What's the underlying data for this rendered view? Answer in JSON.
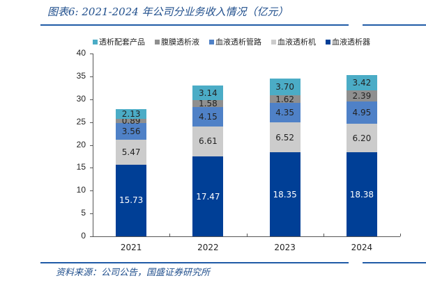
{
  "header": {
    "title": "图表6:  2021-2024 年公司分业务收入情况（亿元）"
  },
  "footer": {
    "source": "资料来源：公司公告，国盛证券研究所"
  },
  "colors": {
    "accent": "#1f5aa6",
    "透析配套产品": "#4bacc6",
    "腹膜透析液": "#8f8f8f",
    "血液透析管路": "#4f81c7",
    "血液透析机": "#cccccc",
    "血液透析器": "#003f96"
  },
  "legend": [
    {
      "label": "透析配套产品",
      "color": "#4bacc6"
    },
    {
      "label": "腹膜透析液",
      "color": "#8f8f8f"
    },
    {
      "label": "血液透析管路",
      "color": "#4f81c7"
    },
    {
      "label": "血液透析机",
      "color": "#cccccc"
    },
    {
      "label": "血液透析器",
      "color": "#003f96"
    }
  ],
  "yticks": [
    "0",
    "5",
    "10",
    "15",
    "20",
    "25",
    "30",
    "35",
    "40"
  ],
  "chart_data": {
    "type": "bar",
    "stacked": true,
    "title": "2021-2024 年公司分业务收入情况（亿元）",
    "xlabel": "",
    "ylabel": "",
    "ylim": [
      0,
      40
    ],
    "yticks": [
      0,
      5,
      10,
      15,
      20,
      25,
      30,
      35,
      40
    ],
    "grid": false,
    "legend_position": "top",
    "categories": [
      "2021",
      "2022",
      "2023",
      "2024"
    ],
    "series": [
      {
        "name": "血液透析器",
        "color": "#003f96",
        "values": [
          15.73,
          17.47,
          18.35,
          18.38
        ]
      },
      {
        "name": "血液透析机",
        "color": "#cccccc",
        "values": [
          5.47,
          6.61,
          6.52,
          6.2
        ]
      },
      {
        "name": "血液透析管路",
        "color": "#4f81c7",
        "values": [
          3.56,
          4.15,
          4.35,
          4.95
        ]
      },
      {
        "name": "腹膜透析液",
        "color": "#8f8f8f",
        "values": [
          0.89,
          1.58,
          1.62,
          2.39
        ]
      },
      {
        "name": "透析配套产品",
        "color": "#4bacc6",
        "values": [
          2.13,
          3.14,
          3.7,
          3.42
        ]
      }
    ],
    "value_labels": {
      "2021": [
        "15.73",
        "5.47",
        "3.56",
        "0.89",
        "2.13"
      ],
      "2022": [
        "17.47",
        "6.61",
        "4.15",
        "1.58",
        "3.14"
      ],
      "2023": [
        "18.35",
        "6.52",
        "4.35",
        "1.62",
        "3.70"
      ],
      "2024": [
        "18.38",
        "6.20",
        "4.95",
        "2.39",
        "3.42"
      ]
    },
    "source": "资料来源：公司公告，国盛证券研究所"
  }
}
